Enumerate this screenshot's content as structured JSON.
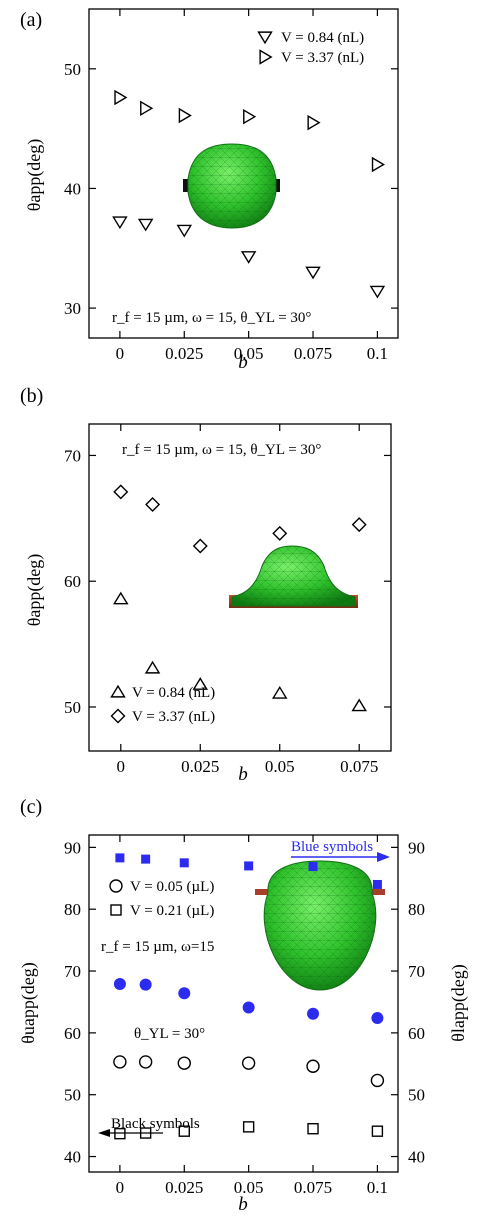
{
  "chart_data": [
    {
      "panel": "(a)",
      "type": "scatter",
      "xlabel": "b",
      "ylabel": "θapp(deg)",
      "xlim": [
        -0.012,
        0.108
      ],
      "ylim": [
        27.5,
        55
      ],
      "xticks": [
        "0",
        "0.025",
        "0.05",
        "0.075",
        "0.1"
      ],
      "xtick_values": [
        0,
        0.025,
        0.05,
        0.075,
        0.1
      ],
      "yticks": [
        "30",
        "40",
        "50"
      ],
      "ytick_values": [
        30,
        40,
        50
      ],
      "annotation": "r_f = 15 µm, ω = 15, θ_YL = 30°",
      "inset": "green drop on fiber (barrel shape)",
      "legend_position": "top-right",
      "series": [
        {
          "name": "V = 0.84 (nL)",
          "marker": "triangle-down",
          "color": "#000000",
          "x": [
            0,
            0.01,
            0.025,
            0.05,
            0.075,
            0.1
          ],
          "y": [
            37.2,
            37.0,
            36.5,
            34.3,
            33.0,
            31.4
          ]
        },
        {
          "name": "V = 3.37 (nL)",
          "marker": "triangle-right",
          "color": "#000000",
          "x": [
            0,
            0.01,
            0.025,
            0.05,
            0.075,
            0.1
          ],
          "y": [
            47.6,
            46.7,
            46.1,
            46.0,
            45.5,
            42.0
          ]
        }
      ]
    },
    {
      "panel": "(b)",
      "type": "scatter",
      "xlabel": "b",
      "ylabel": "θapp(deg)",
      "xlim": [
        -0.01,
        0.085
      ],
      "ylim": [
        46.5,
        72.5
      ],
      "xticks": [
        "0",
        "0.025",
        "0.05",
        "0.075"
      ],
      "xtick_values": [
        0,
        0.025,
        0.05,
        0.075
      ],
      "yticks": [
        "50",
        "60",
        "70"
      ],
      "ytick_values": [
        50,
        60,
        70
      ],
      "annotation": "r_f = 15 µm, ω = 15, θ_YL = 30°",
      "inset": "green drop on textured substrate (dome shape)",
      "legend_position": "bottom-left",
      "series": [
        {
          "name": "V = 0.84 (nL)",
          "marker": "triangle-up",
          "color": "#000000",
          "x": [
            0,
            0.01,
            0.025,
            0.05,
            0.075
          ],
          "y": [
            58.6,
            53.1,
            51.8,
            51.1,
            50.1
          ]
        },
        {
          "name": "V = 3.37 (nL)",
          "marker": "diamond",
          "color": "#000000",
          "x": [
            0,
            0.01,
            0.025,
            0.05,
            0.075
          ],
          "y": [
            67.1,
            66.1,
            62.8,
            63.8,
            64.5
          ]
        }
      ]
    },
    {
      "panel": "(c)",
      "type": "scatter",
      "xlabel": "b",
      "ylabel_left": "θuapp(deg)",
      "ylabel_right": "θlapp(deg)",
      "xlim": [
        -0.012,
        0.108
      ],
      "ylim": [
        37.5,
        92
      ],
      "xticks": [
        "0",
        "0.025",
        "0.05",
        "0.075",
        "0.1"
      ],
      "xtick_values": [
        0,
        0.025,
        0.05,
        0.075,
        0.1
      ],
      "yticks": [
        "40",
        "50",
        "60",
        "70",
        "80",
        "90"
      ],
      "ytick_values": [
        40,
        50,
        60,
        70,
        80,
        90
      ],
      "annotation_line1": "r_f = 15 µm, ω=15",
      "annotation_line2": "θ_YL = 30°",
      "blue_arrow_label": "Blue symbols",
      "black_arrow_label": "Black symbols",
      "inset": "green droplet hanging on fiber",
      "legend_position": "upper-left",
      "series": [
        {
          "name": "V = 0.05 (µL)",
          "marker": "circle-open",
          "color": "#000000",
          "axis": "left",
          "x": [
            0,
            0.01,
            0.025,
            0.05,
            0.075,
            0.1
          ],
          "y": [
            55.3,
            55.3,
            55.1,
            55.1,
            54.6,
            52.3
          ]
        },
        {
          "name": "V = 0.21 (µL)",
          "marker": "square-open",
          "color": "#000000",
          "axis": "left",
          "x": [
            0,
            0.01,
            0.025,
            0.05,
            0.075,
            0.1
          ],
          "y": [
            43.7,
            43.8,
            44.1,
            44.8,
            44.5,
            44.1
          ]
        },
        {
          "marker": "circle-filled",
          "color": "#2c2cf0",
          "axis": "right",
          "x": [
            0,
            0.01,
            0.025,
            0.05,
            0.075,
            0.1
          ],
          "y": [
            67.9,
            67.8,
            66.4,
            64.1,
            63.1,
            62.4
          ]
        },
        {
          "marker": "square-filled",
          "color": "#2c2cf0",
          "axis": "right",
          "x": [
            0,
            0.01,
            0.025,
            0.05,
            0.075,
            0.1
          ],
          "y": [
            88.3,
            88.1,
            87.5,
            87.0,
            86.9,
            84.0
          ]
        }
      ]
    }
  ]
}
